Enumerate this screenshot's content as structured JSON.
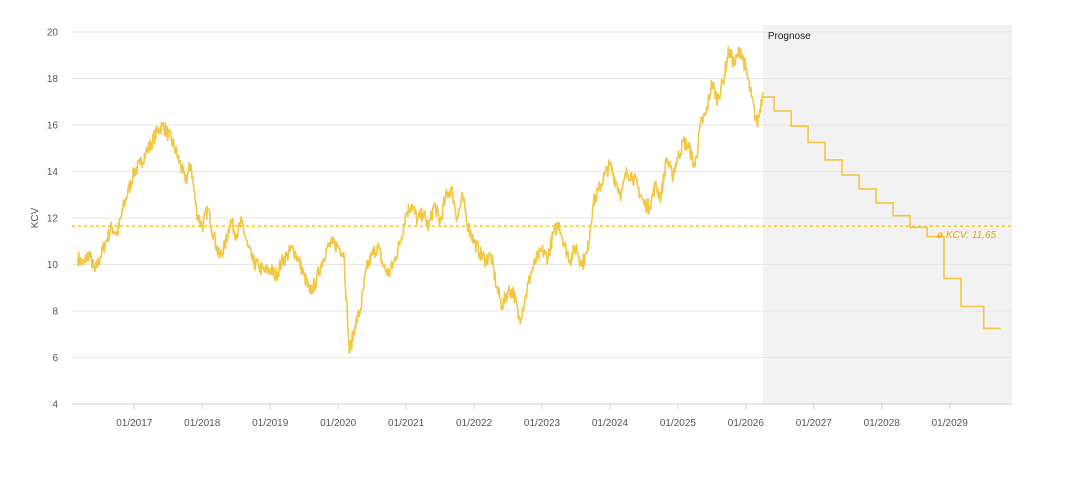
{
  "chart_data": {
    "type": "line",
    "ylabel": "KCV",
    "ylim": [
      4,
      20
    ],
    "y_ticks": [
      4,
      6,
      8,
      10,
      12,
      14,
      16,
      18,
      20
    ],
    "x_ticks": [
      "01/2017",
      "01/2018",
      "01/2019",
      "01/2020",
      "01/2021",
      "01/2022",
      "01/2023",
      "01/2024",
      "01/2025",
      "01/2026",
      "01/2027",
      "01/2028",
      "01/2029"
    ],
    "x_range": [
      "2016-02",
      "2029-12"
    ],
    "grid": true,
    "forecast": {
      "label": "Prognose",
      "start": "2026-04"
    },
    "average": {
      "label": "ø KCV: 11,65",
      "value": 11.65
    },
    "colors": {
      "line": "#f2c744",
      "forecast_bg": "#f2f2f2",
      "grid": "#e6e6e6"
    },
    "series": [
      {
        "values": [
          [
            "2016-03",
            10.3
          ],
          [
            "2016-04",
            10.0
          ],
          [
            "2016-05",
            10.5
          ],
          [
            "2016-06",
            9.7
          ],
          [
            "2016-07",
            10.3
          ],
          [
            "2016-08",
            11.0
          ],
          [
            "2016-09",
            11.6
          ],
          [
            "2016-10",
            11.3
          ],
          [
            "2016-11",
            12.4
          ],
          [
            "2016-12",
            13.2
          ],
          [
            "2017-01",
            14.0
          ],
          [
            "2017-02",
            14.3
          ],
          [
            "2017-03",
            14.8
          ],
          [
            "2017-04",
            15.2
          ],
          [
            "2017-05",
            15.7
          ],
          [
            "2017-06",
            16.0
          ],
          [
            "2017-07",
            15.6
          ],
          [
            "2017-08",
            15.1
          ],
          [
            "2017-09",
            14.4
          ],
          [
            "2017-10",
            13.6
          ],
          [
            "2017-11",
            14.3
          ],
          [
            "2017-12",
            12.3
          ],
          [
            "2018-01",
            11.6
          ],
          [
            "2018-02",
            12.4
          ],
          [
            "2018-03",
            11.3
          ],
          [
            "2018-04",
            10.3
          ],
          [
            "2018-05",
            10.8
          ],
          [
            "2018-06",
            11.9
          ],
          [
            "2018-07",
            11.3
          ],
          [
            "2018-08",
            11.8
          ],
          [
            "2018-09",
            10.8
          ],
          [
            "2018-10",
            10.1
          ],
          [
            "2018-11",
            9.9
          ],
          [
            "2018-12",
            9.7
          ],
          [
            "2019-01",
            9.8
          ],
          [
            "2019-02",
            9.5
          ],
          [
            "2019-03",
            10.1
          ],
          [
            "2019-04",
            10.4
          ],
          [
            "2019-05",
            10.7
          ],
          [
            "2019-06",
            10.2
          ],
          [
            "2019-07",
            9.5
          ],
          [
            "2019-08",
            8.8
          ],
          [
            "2019-09",
            9.2
          ],
          [
            "2019-10",
            10.0
          ],
          [
            "2019-11",
            10.7
          ],
          [
            "2019-12",
            10.9
          ],
          [
            "2020-01",
            10.8
          ],
          [
            "2020-02",
            10.5
          ],
          [
            "2020-03",
            6.2
          ],
          [
            "2020-04",
            7.4
          ],
          [
            "2020-05",
            8.1
          ],
          [
            "2020-06",
            9.8
          ],
          [
            "2020-07",
            10.4
          ],
          [
            "2020-08",
            10.8
          ],
          [
            "2020-09",
            9.9
          ],
          [
            "2020-10",
            9.6
          ],
          [
            "2020-11",
            10.2
          ],
          [
            "2020-12",
            11.0
          ],
          [
            "2021-01",
            12.2
          ],
          [
            "2021-02",
            12.6
          ],
          [
            "2021-03",
            11.9
          ],
          [
            "2021-04",
            12.2
          ],
          [
            "2021-05",
            11.6
          ],
          [
            "2021-06",
            12.6
          ],
          [
            "2021-07",
            11.8
          ],
          [
            "2021-08",
            12.9
          ],
          [
            "2021-09",
            13.3
          ],
          [
            "2021-10",
            12.0
          ],
          [
            "2021-11",
            12.9
          ],
          [
            "2021-12",
            11.6
          ],
          [
            "2022-01",
            11.0
          ],
          [
            "2022-02",
            10.5
          ],
          [
            "2022-03",
            10.2
          ],
          [
            "2022-04",
            10.4
          ],
          [
            "2022-05",
            9.0
          ],
          [
            "2022-06",
            8.2
          ],
          [
            "2022-07",
            8.9
          ],
          [
            "2022-08",
            8.8
          ],
          [
            "2022-09",
            7.6
          ],
          [
            "2022-10",
            8.5
          ],
          [
            "2022-11",
            9.6
          ],
          [
            "2022-12",
            10.2
          ],
          [
            "2023-01",
            10.6
          ],
          [
            "2023-02",
            10.3
          ],
          [
            "2023-03",
            11.3
          ],
          [
            "2023-04",
            11.8
          ],
          [
            "2023-05",
            10.8
          ],
          [
            "2023-06",
            10.2
          ],
          [
            "2023-07",
            10.8
          ],
          [
            "2023-08",
            10.0
          ],
          [
            "2023-09",
            10.5
          ],
          [
            "2023-10",
            12.6
          ],
          [
            "2023-11",
            13.2
          ],
          [
            "2023-12",
            13.8
          ],
          [
            "2024-01",
            14.3
          ],
          [
            "2024-02",
            13.6
          ],
          [
            "2024-03",
            13.0
          ],
          [
            "2024-04",
            14.0
          ],
          [
            "2024-05",
            13.8
          ],
          [
            "2024-06",
            13.3
          ],
          [
            "2024-07",
            12.6
          ],
          [
            "2024-08",
            12.5
          ],
          [
            "2024-09",
            13.4
          ],
          [
            "2024-10",
            12.9
          ],
          [
            "2024-11",
            14.6
          ],
          [
            "2024-12",
            13.8
          ],
          [
            "2025-01",
            14.6
          ],
          [
            "2025-02",
            15.3
          ],
          [
            "2025-03",
            15.0
          ],
          [
            "2025-04",
            14.2
          ],
          [
            "2025-05",
            16.0
          ],
          [
            "2025-06",
            16.5
          ],
          [
            "2025-07",
            17.8
          ],
          [
            "2025-08",
            17.1
          ],
          [
            "2025-09",
            17.9
          ],
          [
            "2025-10",
            19.2
          ],
          [
            "2025-11",
            18.6
          ],
          [
            "2025-12",
            19.3
          ],
          [
            "2026-01",
            18.4
          ],
          [
            "2026-02",
            17.2
          ],
          [
            "2026-03",
            16.0
          ],
          [
            "2026-04",
            17.4
          ]
        ]
      },
      {
        "values": [
          [
            "2026-04",
            17.2
          ],
          [
            "2026-06",
            16.6
          ],
          [
            "2026-09",
            15.95
          ],
          [
            "2026-12",
            15.25
          ],
          [
            "2027-03",
            14.5
          ],
          [
            "2027-06",
            13.85
          ],
          [
            "2027-09",
            13.25
          ],
          [
            "2027-12",
            12.65
          ],
          [
            "2028-03",
            12.1
          ],
          [
            "2028-06",
            11.6
          ],
          [
            "2028-09",
            11.2
          ],
          [
            "2028-12",
            9.4
          ],
          [
            "2029-03",
            8.2
          ],
          [
            "2029-07",
            7.25
          ],
          [
            "2029-10",
            7.25
          ]
        ]
      }
    ]
  }
}
